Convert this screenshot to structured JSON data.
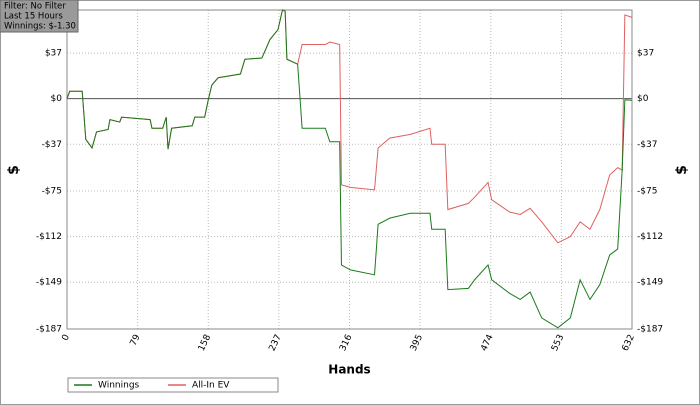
{
  "chart_data": {
    "type": "line",
    "info": [
      "Filter: No Filter",
      "Last  15 Hours",
      "Winnings: $-1.30"
    ],
    "x_label": "Hands",
    "y_label": "$",
    "x": [
      0,
      3,
      17,
      21,
      28,
      33,
      46,
      48,
      59,
      61,
      93,
      95,
      107,
      111,
      113,
      117,
      140,
      143,
      154,
      158,
      162,
      169,
      194,
      199,
      218,
      227,
      236,
      241,
      244,
      246,
      258,
      263,
      289,
      294,
      305,
      307,
      317,
      344,
      348,
      361,
      384,
      406,
      408,
      423,
      426,
      449,
      456,
      471,
      475,
      495,
      507,
      518,
      531,
      549,
      563,
      574,
      585,
      596,
      607,
      616,
      621,
      624,
      632
    ],
    "series": [
      {
        "name": "Winnings",
        "color": "#1a7a1a",
        "values": [
          0,
          6,
          6,
          -33,
          -40,
          -27,
          -25,
          -17,
          -19,
          -15,
          -17,
          -24,
          -24,
          -15,
          -41,
          -24,
          -22,
          -15,
          -15,
          -1,
          11,
          17,
          20,
          32,
          33,
          48,
          56,
          72,
          71,
          32,
          28,
          -24,
          -24,
          -35,
          -35,
          -135,
          -139,
          -143,
          -102,
          -97,
          -93,
          -93,
          -106,
          -106,
          -155,
          -154,
          -147,
          -135,
          -147,
          -158,
          -163,
          -157,
          -178,
          -186,
          -178,
          -147,
          -163,
          -151,
          -127,
          -122,
          -58,
          -1,
          -1.3
        ]
      },
      {
        "name": "All-In EV",
        "color": "#e06060",
        "values": [
          0,
          6,
          6,
          -33,
          -40,
          -27,
          -25,
          -17,
          -19,
          -15,
          -17,
          -24,
          -24,
          -15,
          -41,
          -24,
          -22,
          -15,
          -15,
          -1,
          11,
          17,
          20,
          32,
          33,
          48,
          56,
          72,
          71,
          32,
          28,
          44,
          44,
          46,
          44,
          -70,
          -72,
          -74,
          -40,
          -32,
          -29,
          -24,
          -37,
          -37,
          -90,
          -85,
          -80,
          -68,
          -82,
          -92,
          -94,
          -89,
          -100,
          -117,
          -112,
          -100,
          -106,
          -90,
          -62,
          -56,
          -58,
          68,
          66
        ]
      }
    ],
    "xlim": [
      0,
      632
    ],
    "xticks": [
      0,
      79,
      158,
      237,
      316,
      395,
      474,
      553,
      632
    ],
    "ylim": [
      -187,
      72
    ],
    "yticks": [
      {
        "value": 37,
        "label": "$37"
      },
      {
        "value": 0,
        "label": "$0"
      },
      {
        "value": -37,
        "label": "-$37"
      },
      {
        "value": -75,
        "label": "-$75"
      },
      {
        "value": -112,
        "label": "-$112"
      },
      {
        "value": -149,
        "label": "-$149"
      },
      {
        "value": -187,
        "label": "-$187"
      }
    ],
    "grid": true
  }
}
